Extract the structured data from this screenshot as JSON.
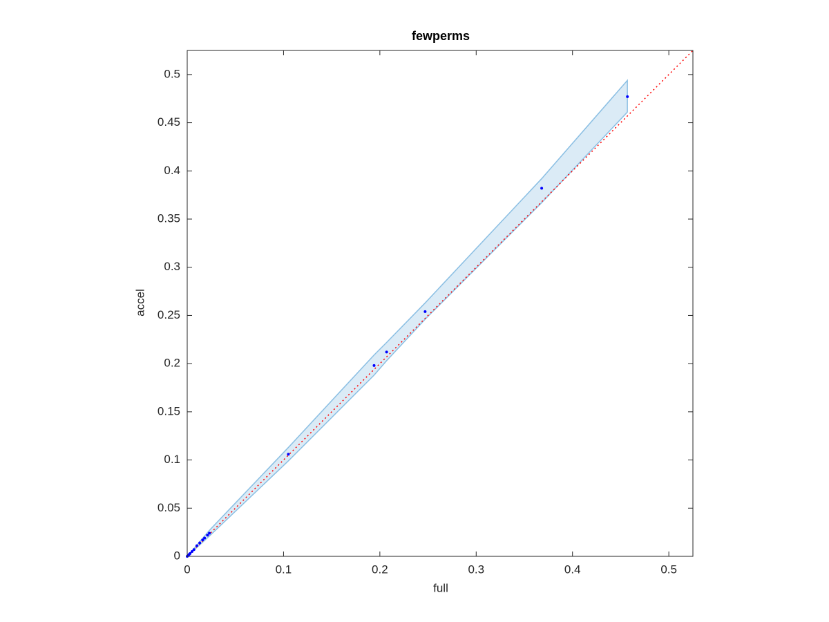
{
  "chart_data": {
    "type": "scatter",
    "title": "fewperms",
    "x_label": "full",
    "y_label": "accel",
    "xlim": [
      0,
      0.525
    ],
    "ylim": [
      0,
      0.525
    ],
    "xticks": [
      0,
      0.1,
      0.2,
      0.3,
      0.4,
      0.5
    ],
    "yticks": [
      0,
      0.05,
      0.1,
      0.15,
      0.2,
      0.25,
      0.3,
      0.35,
      0.4,
      0.45,
      0.5
    ],
    "points": {
      "color": "#0000ff",
      "x": [
        0,
        0.001,
        0.002,
        0.003,
        0.005,
        0.007,
        0.01,
        0.013,
        0.016,
        0.018,
        0.021,
        0.023,
        0.105,
        0.194,
        0.207,
        0.247,
        0.368,
        0.457
      ],
      "values": [
        0,
        0.001,
        0.002,
        0.003,
        0.005,
        0.007,
        0.011,
        0.014,
        0.017,
        0.019,
        0.022,
        0.024,
        0.106,
        0.198,
        0.212,
        0.254,
        0.382,
        0.477
      ]
    },
    "band": {
      "color": "#4a9bd4",
      "x": [
        0,
        0.023,
        0.105,
        0.194,
        0.207,
        0.247,
        0.368,
        0.457
      ],
      "upper": [
        0,
        0.027,
        0.113,
        0.209,
        0.222,
        0.263,
        0.392,
        0.494
      ],
      "lower": [
        0,
        0.021,
        0.099,
        0.188,
        0.203,
        0.246,
        0.367,
        0.461
      ]
    },
    "reference_line": {
      "color": "#ff0000",
      "x": [
        0,
        0.525
      ],
      "values": [
        0,
        0.525
      ]
    }
  }
}
